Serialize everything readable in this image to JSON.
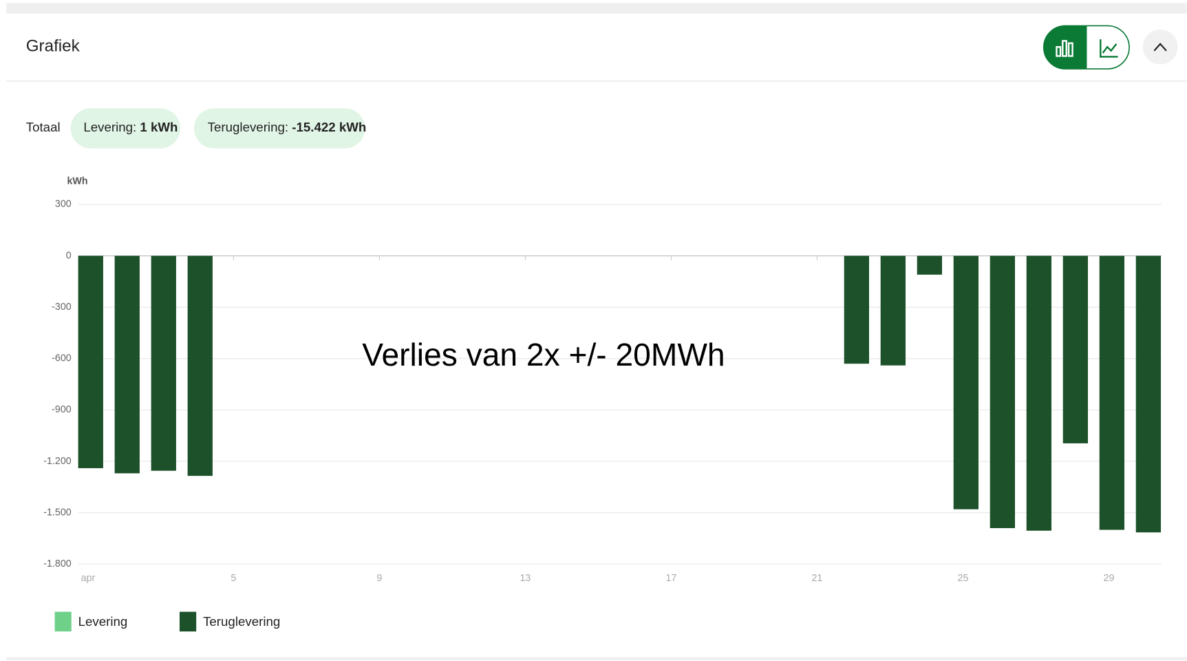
{
  "header": {
    "title": "Grafiek"
  },
  "totals": {
    "label": "Totaal",
    "items": [
      {
        "label": "Levering:",
        "value": "1 kWh"
      },
      {
        "label": "Teruglevering:",
        "value": "-15.422 kWh"
      }
    ]
  },
  "chart_data": {
    "type": "bar",
    "ylabel": "kWh",
    "annotation": "Verlies van 2x +/- 20MWh",
    "categories": [
      "apr",
      null,
      null,
      null,
      "5",
      null,
      null,
      null,
      "9",
      null,
      null,
      null,
      "13",
      null,
      null,
      null,
      "17",
      null,
      null,
      null,
      "21",
      null,
      null,
      null,
      "25",
      null,
      null,
      null,
      "29",
      null
    ],
    "series": [
      {
        "name": "Levering",
        "color": "#6fd08a",
        "values": [
          null,
          null,
          null,
          null,
          null,
          null,
          null,
          null,
          null,
          null,
          null,
          null,
          null,
          null,
          null,
          null,
          null,
          null,
          null,
          null,
          null,
          null,
          null,
          null,
          null,
          null,
          null,
          null,
          null,
          null
        ]
      },
      {
        "name": "Teruglevering",
        "color": "#1d5129",
        "values": [
          -1240,
          -1270,
          -1255,
          -1285,
          null,
          null,
          null,
          null,
          null,
          null,
          null,
          null,
          null,
          null,
          null,
          null,
          null,
          null,
          null,
          null,
          null,
          -630,
          -640,
          -110,
          -1480,
          -1590,
          -1605,
          -1095,
          -1600,
          -1615
        ]
      }
    ],
    "ylim": [
      -1800,
      300
    ],
    "yticks": [
      300,
      0,
      -300,
      -600,
      -900,
      {
        "value": -1200,
        "label": "-1.200"
      },
      {
        "value": -1500,
        "label": "-1.500"
      },
      {
        "value": -1800,
        "label": "-1.800"
      }
    ],
    "grid": true
  }
}
